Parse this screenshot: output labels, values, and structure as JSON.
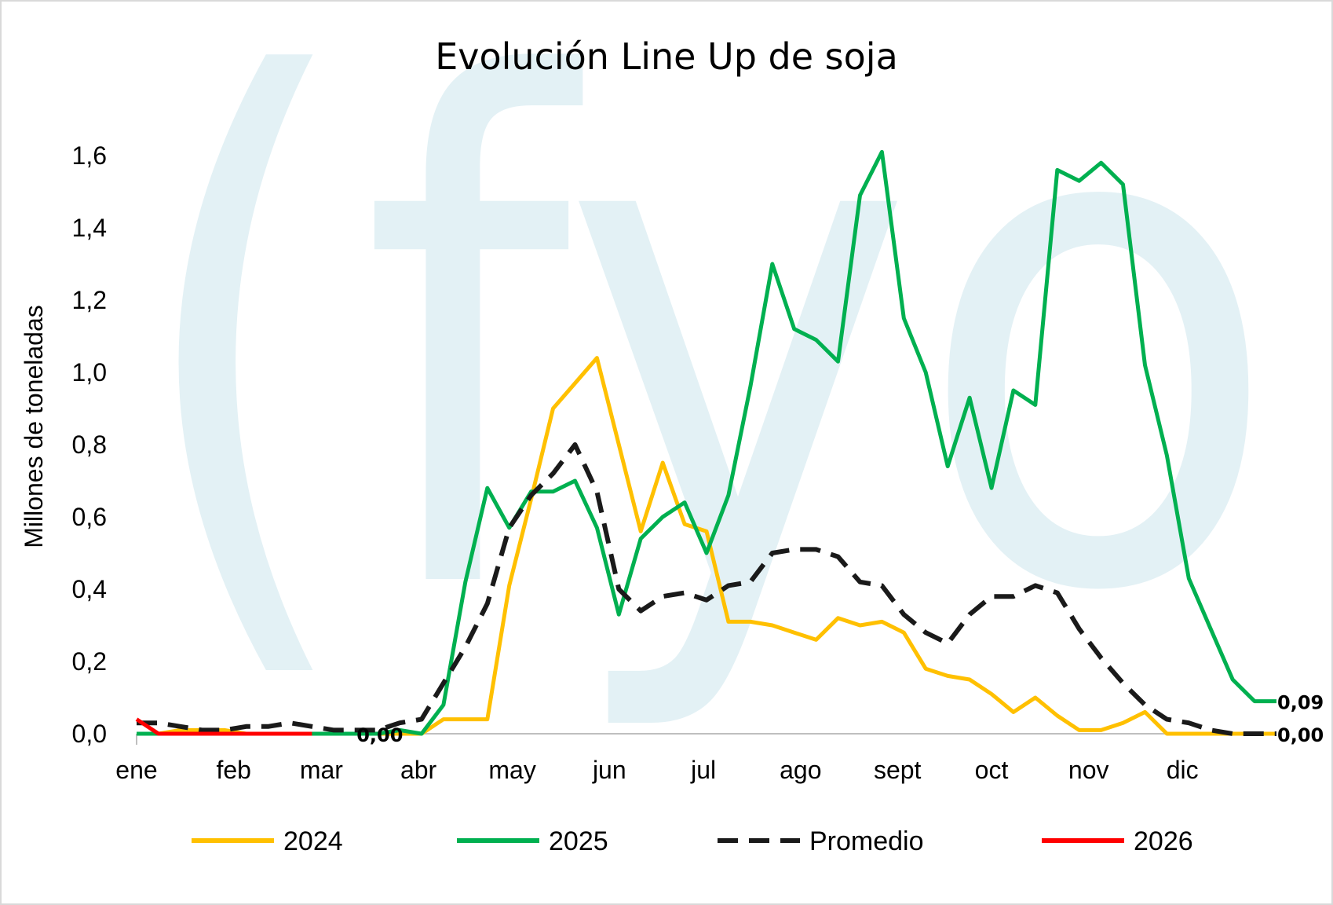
{
  "watermark": {
    "text": "(fyo",
    "color": "#e3f1f5"
  },
  "chart_data": {
    "type": "line",
    "title": "Evolución Line Up de soja",
    "xlabel": "",
    "ylabel": "Millones de toneladas",
    "ylim": [
      0,
      1.7
    ],
    "yticks": [
      {
        "value": 0.0,
        "label": "0,0"
      },
      {
        "value": 0.2,
        "label": "0,2"
      },
      {
        "value": 0.4,
        "label": "0,4"
      },
      {
        "value": 0.6,
        "label": "0,6"
      },
      {
        "value": 0.8,
        "label": "0,8"
      },
      {
        "value": 1.0,
        "label": "1,0"
      },
      {
        "value": 1.2,
        "label": "1,2"
      },
      {
        "value": 1.4,
        "label": "1,4"
      },
      {
        "value": 1.6,
        "label": "1,6"
      }
    ],
    "x_range": [
      0,
      52
    ],
    "months": [
      {
        "label": "ene",
        "week": 0
      },
      {
        "label": "feb",
        "week": 4.43
      },
      {
        "label": "mar",
        "week": 8.43
      },
      {
        "label": "abr",
        "week": 12.86
      },
      {
        "label": "may",
        "week": 17.14
      },
      {
        "label": "jun",
        "week": 21.57
      },
      {
        "label": "jul",
        "week": 25.86
      },
      {
        "label": "ago",
        "week": 30.29
      },
      {
        "label": "sept",
        "week": 34.71
      },
      {
        "label": "oct",
        "week": 39.0
      },
      {
        "label": "nov",
        "week": 43.43
      },
      {
        "label": "dic",
        "week": 47.71
      }
    ],
    "grid": false,
    "legend_position": "bottom",
    "series": [
      {
        "name": "2024",
        "color": "#ffc000",
        "dash": "solid",
        "points": [
          [
            0,
            0
          ],
          [
            1,
            0
          ],
          [
            2,
            0.01
          ],
          [
            3,
            0.01
          ],
          [
            4,
            0.01
          ],
          [
            5,
            0
          ],
          [
            6,
            0
          ],
          [
            7,
            0
          ],
          [
            8,
            0
          ],
          [
            9,
            0
          ],
          [
            10,
            0
          ],
          [
            11,
            0
          ],
          [
            12,
            0
          ],
          [
            13,
            0
          ],
          [
            14,
            0.04
          ],
          [
            15,
            0.04
          ],
          [
            16,
            0.04
          ],
          [
            17,
            0.41
          ],
          [
            18,
            0.65
          ],
          [
            19,
            0.9
          ],
          [
            20,
            0.97
          ],
          [
            21,
            1.04
          ],
          [
            22,
            0.8
          ],
          [
            23,
            0.56
          ],
          [
            24,
            0.75
          ],
          [
            25,
            0.58
          ],
          [
            26,
            0.56
          ],
          [
            27,
            0.31
          ],
          [
            28,
            0.31
          ],
          [
            29,
            0.3
          ],
          [
            30,
            0.28
          ],
          [
            31,
            0.26
          ],
          [
            32,
            0.32
          ],
          [
            33,
            0.3
          ],
          [
            34,
            0.31
          ],
          [
            35,
            0.28
          ],
          [
            36,
            0.18
          ],
          [
            37,
            0.16
          ],
          [
            38,
            0.15
          ],
          [
            39,
            0.11
          ],
          [
            40,
            0.06
          ],
          [
            41,
            0.1
          ],
          [
            42,
            0.05
          ],
          [
            43,
            0.01
          ],
          [
            44,
            0.01
          ],
          [
            45,
            0.03
          ],
          [
            46,
            0.06
          ],
          [
            47,
            0
          ],
          [
            48,
            0
          ],
          [
            49,
            0
          ],
          [
            50,
            0
          ],
          [
            51,
            0
          ],
          [
            52,
            0
          ]
        ]
      },
      {
        "name": "2025",
        "color": "#00b050",
        "dash": "solid",
        "points": [
          [
            0,
            0
          ],
          [
            1,
            0
          ],
          [
            2,
            0
          ],
          [
            3,
            0
          ],
          [
            4,
            0
          ],
          [
            5,
            0
          ],
          [
            6,
            0
          ],
          [
            7,
            0
          ],
          [
            8,
            0
          ],
          [
            9,
            0
          ],
          [
            10,
            0
          ],
          [
            11,
            0
          ],
          [
            12,
            0.01
          ],
          [
            13,
            0
          ],
          [
            14,
            0.08
          ],
          [
            15,
            0.42
          ],
          [
            16,
            0.68
          ],
          [
            17,
            0.57
          ],
          [
            18,
            0.67
          ],
          [
            19,
            0.67
          ],
          [
            20,
            0.7
          ],
          [
            21,
            0.57
          ],
          [
            22,
            0.33
          ],
          [
            23,
            0.54
          ],
          [
            24,
            0.6
          ],
          [
            25,
            0.64
          ],
          [
            26,
            0.5
          ],
          [
            27,
            0.66
          ],
          [
            28,
            0.96
          ],
          [
            29,
            1.3
          ],
          [
            30,
            1.12
          ],
          [
            31,
            1.09
          ],
          [
            32,
            1.03
          ],
          [
            33,
            1.49
          ],
          [
            34,
            1.61
          ],
          [
            35,
            1.15
          ],
          [
            36,
            1.0
          ],
          [
            37,
            0.74
          ],
          [
            38,
            0.93
          ],
          [
            39,
            0.68
          ],
          [
            40,
            0.95
          ],
          [
            41,
            0.91
          ],
          [
            42,
            1.56
          ],
          [
            43,
            1.53
          ],
          [
            44,
            1.58
          ],
          [
            45,
            1.52
          ],
          [
            46,
            1.02
          ],
          [
            47,
            0.77
          ],
          [
            48,
            0.43
          ],
          [
            49,
            0.29
          ],
          [
            50,
            0.15
          ],
          [
            51,
            0.09
          ],
          [
            52,
            0.09
          ]
        ]
      },
      {
        "name": "Promedio",
        "color": "#1a1a1a",
        "dash": "dashed",
        "points": [
          [
            0,
            0.03
          ],
          [
            1,
            0.03
          ],
          [
            2,
            0.02
          ],
          [
            3,
            0.01
          ],
          [
            4,
            0.01
          ],
          [
            5,
            0.02
          ],
          [
            6,
            0.02
          ],
          [
            7,
            0.03
          ],
          [
            8,
            0.02
          ],
          [
            9,
            0.01
          ],
          [
            10,
            0.01
          ],
          [
            11,
            0.01
          ],
          [
            12,
            0.03
          ],
          [
            13,
            0.04
          ],
          [
            14,
            0.14
          ],
          [
            15,
            0.24
          ],
          [
            16,
            0.36
          ],
          [
            17,
            0.57
          ],
          [
            18,
            0.66
          ],
          [
            19,
            0.72
          ],
          [
            20,
            0.8
          ],
          [
            21,
            0.67
          ],
          [
            22,
            0.4
          ],
          [
            23,
            0.34
          ],
          [
            24,
            0.38
          ],
          [
            25,
            0.39
          ],
          [
            26,
            0.37
          ],
          [
            27,
            0.41
          ],
          [
            28,
            0.42
          ],
          [
            29,
            0.5
          ],
          [
            30,
            0.51
          ],
          [
            31,
            0.51
          ],
          [
            32,
            0.49
          ],
          [
            33,
            0.42
          ],
          [
            34,
            0.41
          ],
          [
            35,
            0.33
          ],
          [
            36,
            0.28
          ],
          [
            37,
            0.25
          ],
          [
            38,
            0.33
          ],
          [
            39,
            0.38
          ],
          [
            40,
            0.38
          ],
          [
            41,
            0.41
          ],
          [
            42,
            0.39
          ],
          [
            43,
            0.29
          ],
          [
            44,
            0.21
          ],
          [
            45,
            0.14
          ],
          [
            46,
            0.08
          ],
          [
            47,
            0.04
          ],
          [
            48,
            0.03
          ],
          [
            49,
            0.01
          ],
          [
            50,
            0
          ],
          [
            51,
            0
          ],
          [
            52,
            0
          ]
        ]
      },
      {
        "name": "2026",
        "color": "#ff0000",
        "dash": "solid",
        "points": [
          [
            0,
            0.04
          ],
          [
            1,
            0
          ],
          [
            2,
            0
          ],
          [
            3,
            0
          ],
          [
            4,
            0
          ],
          [
            5,
            0
          ],
          [
            6,
            0
          ],
          [
            7,
            0
          ],
          [
            8,
            0
          ]
        ]
      }
    ],
    "data_labels": [
      {
        "text": "0,09",
        "x": 52,
        "y": 0.09
      },
      {
        "text": "0,00",
        "x": 52,
        "y": 0.0
      },
      {
        "text": "0,00",
        "x": 10,
        "y": 0.0
      }
    ]
  }
}
